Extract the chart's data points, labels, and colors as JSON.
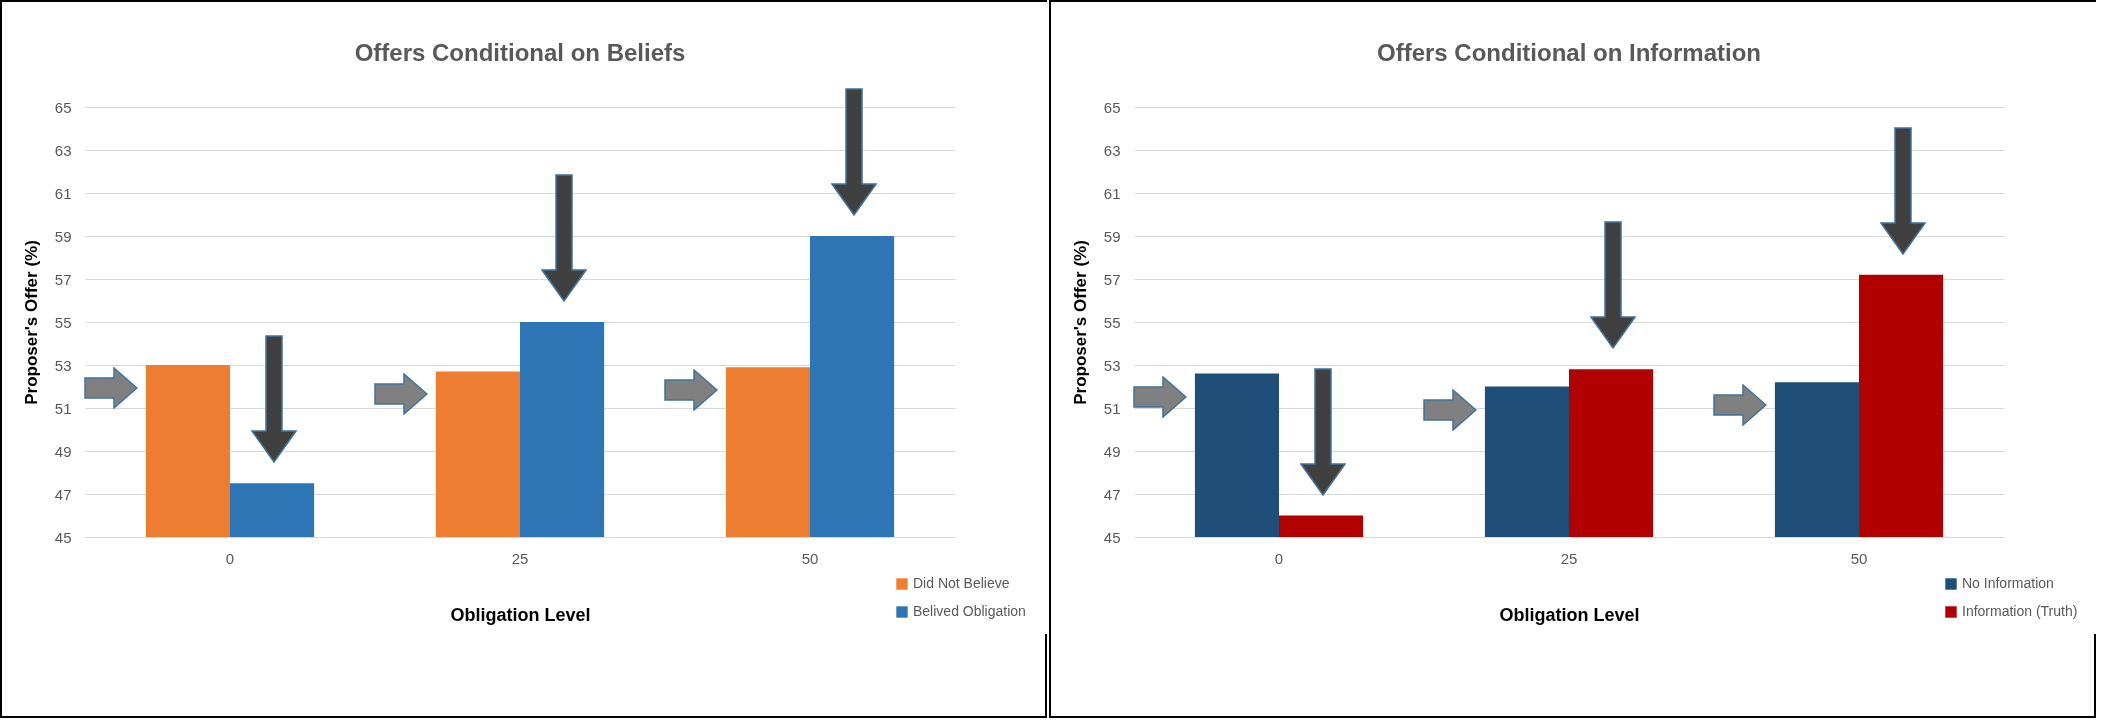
{
  "chart_data": [
    {
      "type": "bar",
      "title": "Offers Conditional on Beliefs",
      "xlabel": "Obligation Level",
      "ylabel": "Proposer's Offer (%)",
      "categories": [
        "0",
        "25",
        "50"
      ],
      "series": [
        {
          "name": "Did Not Believe",
          "color": "#ed7d31",
          "values": [
            53,
            52.7,
            52.9
          ]
        },
        {
          "name": "Belived Obligation",
          "color": "#2e75b6",
          "values": [
            47.5,
            55,
            59
          ]
        }
      ],
      "ylim": [
        45,
        65
      ],
      "yticks": [
        45,
        47,
        49,
        51,
        53,
        55,
        57,
        59,
        61,
        63,
        65
      ],
      "grid": "y",
      "legend": "bottom right"
    },
    {
      "type": "bar",
      "title": "Offers Conditional on Information",
      "xlabel": "Obligation Level",
      "ylabel": "Proposer's Offer (%)",
      "categories": [
        "0",
        "25",
        "50"
      ],
      "series": [
        {
          "name": "No Information",
          "color": "#1f4e79",
          "values": [
            52.6,
            52.0,
            52.2
          ]
        },
        {
          "name": "Information (Truth)",
          "color": "#b00000",
          "values": [
            46.0,
            52.8,
            57.2
          ]
        }
      ],
      "ylim": [
        45,
        65
      ],
      "yticks": [
        45,
        47,
        49,
        51,
        53,
        55,
        57,
        59,
        61,
        63,
        65
      ],
      "grid": "y",
      "legend": "bottom right"
    }
  ]
}
